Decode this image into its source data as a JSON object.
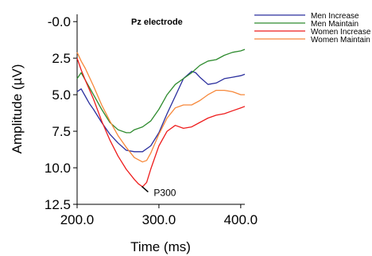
{
  "chart_data": {
    "type": "line",
    "title": "Pz electrode",
    "xlabel": "Time (ms)",
    "ylabel": "Amplitude (µV)",
    "xlim": [
      200,
      405
    ],
    "ylim": [
      -0.5,
      12.5
    ],
    "y_inverted": true,
    "x_ticks": [
      "200.0",
      "300.0",
      "400.0"
    ],
    "y_ticks": [
      "-0.0",
      "2.5",
      "5.0",
      "7.5",
      "10.0",
      "12.5"
    ],
    "x_tick_values": [
      200,
      300,
      400
    ],
    "y_tick_values": [
      0,
      2.5,
      5,
      7.5,
      10,
      12.5
    ],
    "grid": false,
    "legend_position": "top-right",
    "series": [
      {
        "name": "Men Increase",
        "color": "#2b2f9e",
        "x": [
          200,
          205,
          210,
          215,
          220,
          230,
          240,
          250,
          260,
          270,
          280,
          290,
          300,
          310,
          320,
          330,
          340,
          345,
          350,
          360,
          370,
          380,
          390,
          400,
          405
        ],
        "y": [
          4.8,
          4.6,
          5.1,
          5.6,
          6.0,
          6.9,
          7.7,
          8.3,
          8.8,
          8.9,
          8.9,
          8.5,
          7.6,
          6.3,
          5.1,
          3.9,
          3.4,
          3.5,
          3.8,
          4.3,
          4.2,
          3.9,
          3.8,
          3.7,
          3.6
        ]
      },
      {
        "name": "Men Maintain",
        "color": "#2e8b2e",
        "x": [
          200,
          205,
          210,
          220,
          230,
          240,
          250,
          260,
          265,
          270,
          280,
          290,
          300,
          310,
          320,
          330,
          340,
          350,
          360,
          370,
          380,
          390,
          400,
          405
        ],
        "y": [
          3.9,
          3.5,
          4.0,
          5.0,
          6.0,
          6.9,
          7.4,
          7.6,
          7.6,
          7.4,
          7.2,
          6.8,
          6.0,
          5.0,
          4.3,
          3.9,
          3.5,
          3.0,
          2.7,
          2.6,
          2.3,
          2.1,
          2.0,
          1.9
        ]
      },
      {
        "name": "Women Increase",
        "color": "#ee1c1c",
        "x": [
          200,
          205,
          210,
          220,
          230,
          240,
          250,
          260,
          270,
          275,
          280,
          285,
          290,
          300,
          310,
          320,
          330,
          340,
          350,
          360,
          370,
          380,
          390,
          400,
          405
        ],
        "y": [
          2.5,
          3.3,
          4.0,
          5.3,
          6.8,
          8.1,
          9.2,
          10.1,
          10.8,
          11.1,
          11.3,
          11.0,
          10.1,
          8.5,
          7.5,
          7.1,
          7.3,
          7.2,
          6.9,
          6.6,
          6.4,
          6.3,
          6.1,
          5.9,
          5.8
        ]
      },
      {
        "name": "Women Maintain",
        "color": "#f7883a",
        "x": [
          200,
          205,
          210,
          220,
          230,
          240,
          250,
          260,
          270,
          280,
          285,
          290,
          300,
          310,
          320,
          330,
          340,
          350,
          360,
          370,
          380,
          390,
          400,
          405
        ],
        "y": [
          2.1,
          2.7,
          3.2,
          4.4,
          5.7,
          6.8,
          7.8,
          8.6,
          9.3,
          9.6,
          9.5,
          9.0,
          7.7,
          6.6,
          5.9,
          5.7,
          5.7,
          5.4,
          5.0,
          4.7,
          4.7,
          4.8,
          5.0,
          5.0
        ]
      }
    ],
    "annotations": [
      {
        "text": "P300",
        "x": 282,
        "y": 11.6
      }
    ]
  }
}
